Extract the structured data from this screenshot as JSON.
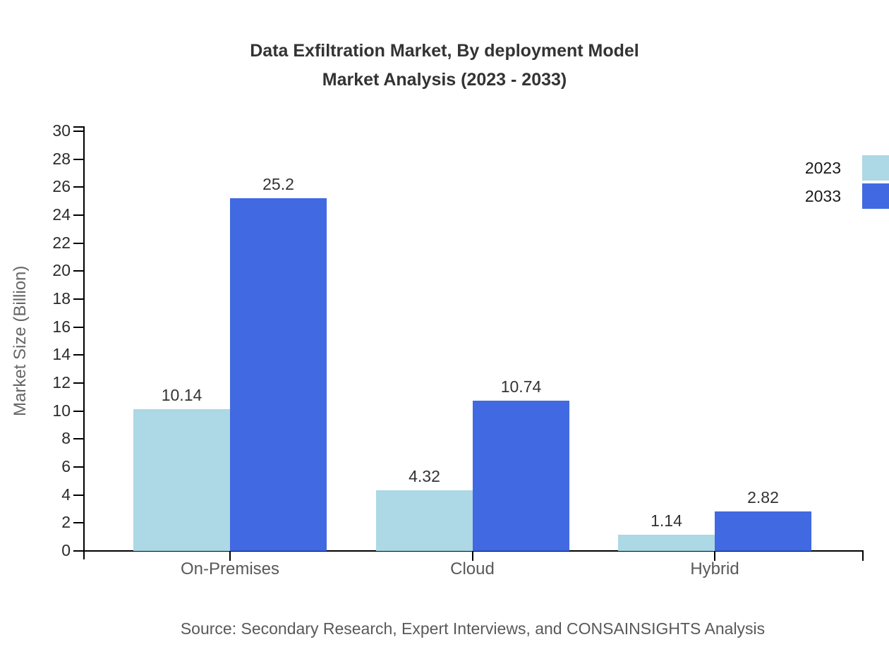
{
  "title": {
    "line1": "Data Exfiltration Market, By deployment Model",
    "line2": "Market Analysis (2023 - 2033)"
  },
  "chart_data": {
    "type": "bar",
    "title": "Data Exfiltration Market, By deployment Model Market Analysis (2023 - 2033)",
    "categories": [
      "On-Premises",
      "Cloud",
      "Hybrid"
    ],
    "series": [
      {
        "name": "2023",
        "color": "#ADD8E6",
        "values": [
          10.14,
          4.32,
          1.14
        ]
      },
      {
        "name": "2033",
        "color": "#4169E1",
        "values": [
          25.2,
          10.74,
          2.82
        ]
      }
    ],
    "xlabel": "",
    "ylabel": "Market Size (Billion)",
    "ylim": [
      0,
      30
    ],
    "ytick_step": 2,
    "yticks": [
      0,
      2,
      4,
      6,
      8,
      10,
      12,
      14,
      16,
      18,
      20,
      22,
      24,
      26,
      28,
      30
    ],
    "grid": false,
    "legend_position": "top-right",
    "value_labels_shown": true
  },
  "source": "Source: Secondary Research, Expert Interviews, and CONSAINSIGHTS Analysis",
  "colors": {
    "series_2023": "#ADD8E6",
    "series_2033": "#4169E1",
    "axis": "#000000",
    "title_text": "#333333",
    "tick_text": "#2b2b2b",
    "category_text": "#595959",
    "source_text": "#595959",
    "ylabel_text": "#666666",
    "background": "#ffffff"
  }
}
